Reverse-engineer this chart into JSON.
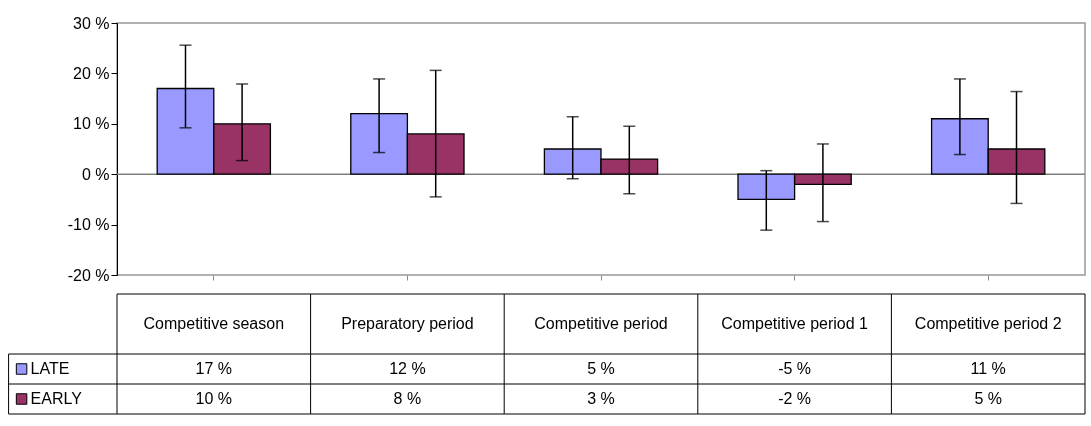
{
  "chart_data": {
    "type": "bar",
    "categories": [
      "Competitive season",
      "Preparatory period",
      "Competitive period",
      "Competitive period 1",
      "Competitive period 2"
    ],
    "series": [
      {
        "name": "LATE",
        "color": "#9999ff",
        "values": [
          17,
          12,
          5,
          -5,
          11
        ],
        "errors": [
          [
            9.2,
            25.6
          ],
          [
            4.3,
            18.9
          ],
          [
            -0.9,
            11.4
          ],
          [
            -11.1,
            0.7
          ],
          [
            3.9,
            18.9
          ]
        ],
        "value_labels": [
          "17 %",
          "12 %",
          "5 %",
          "-5 %",
          "11 %"
        ]
      },
      {
        "name": "EARLY",
        "color": "#993366",
        "values": [
          10,
          8,
          3,
          -2,
          5
        ],
        "errors": [
          [
            2.7,
            17.9
          ],
          [
            -4.5,
            20.6
          ],
          [
            -3.9,
            9.5
          ],
          [
            -9.4,
            6.0
          ],
          [
            -5.8,
            16.4
          ]
        ],
        "value_labels": [
          "10 %",
          "8 %",
          "3 %",
          "-2 %",
          "5 %"
        ]
      }
    ],
    "ylim": [
      -20,
      30
    ],
    "yticks": [
      {
        "value": -20,
        "label": "-20 %"
      },
      {
        "value": -10,
        "label": "-10 %"
      },
      {
        "value": 0,
        "label": "0 %"
      },
      {
        "value": 10,
        "label": "10 %"
      },
      {
        "value": 20,
        "label": "20 %"
      },
      {
        "value": 30,
        "label": "30 %"
      }
    ],
    "legend": "bottom left"
  }
}
